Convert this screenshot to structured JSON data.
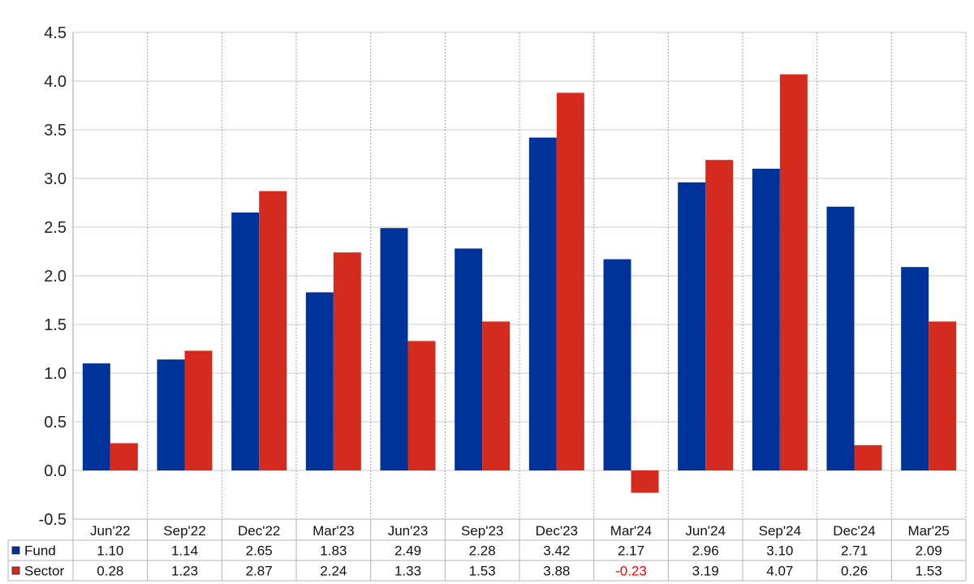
{
  "chart_data": {
    "type": "bar",
    "categories": [
      "Jun'22",
      "Sep'22",
      "Dec'22",
      "Mar'23",
      "Jun'23",
      "Sep'23",
      "Dec'23",
      "Mar'24",
      "Jun'24",
      "Sep'24",
      "Dec'24",
      "Mar'25"
    ],
    "series": [
      {
        "name": "Fund",
        "color": "#003399",
        "values": [
          1.1,
          1.14,
          2.65,
          1.83,
          2.49,
          2.28,
          3.42,
          2.17,
          2.96,
          3.1,
          2.71,
          2.09
        ],
        "labels": [
          "1.10",
          "1.14",
          "2.65",
          "1.83",
          "2.49",
          "2.28",
          "3.42",
          "2.17",
          "2.96",
          "3.10",
          "2.71",
          "2.09"
        ]
      },
      {
        "name": "Sector",
        "color": "#d52b1e",
        "values": [
          0.28,
          1.23,
          2.87,
          2.24,
          1.33,
          1.53,
          3.88,
          -0.23,
          3.19,
          4.07,
          0.26,
          1.53
        ],
        "labels": [
          "0.28",
          "1.23",
          "2.87",
          "2.24",
          "1.33",
          "1.53",
          "3.88",
          "-0.23",
          "3.19",
          "4.07",
          "0.26",
          "1.53"
        ]
      }
    ],
    "ylim": [
      -0.5,
      4.5
    ],
    "yticks": [
      "-0.5",
      "0.0",
      "0.5",
      "1.0",
      "1.5",
      "2.0",
      "2.5",
      "3.0",
      "3.5",
      "4.0",
      "4.5"
    ],
    "negative_label_color": "#ff0000",
    "grid": true,
    "legend": "data-table-left"
  }
}
